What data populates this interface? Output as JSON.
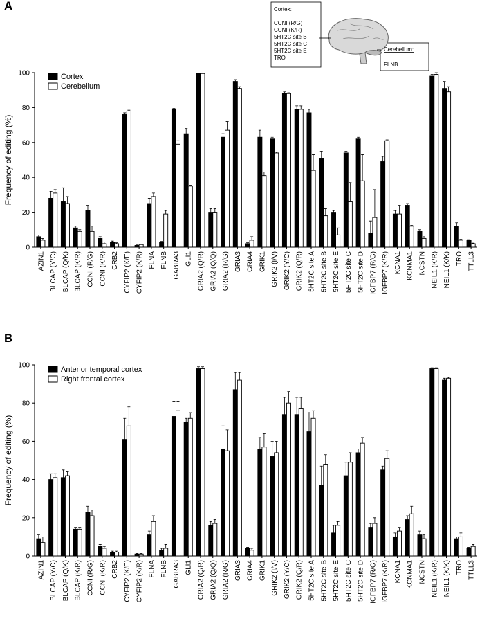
{
  "chart_data": [
    {
      "type": "bar",
      "panel": "A",
      "ylabel": "Frequency of editing (%)",
      "categories": [
        "AZIN1",
        "BLCAP (Y/C)",
        "BLCAP (Q/K)",
        "BLCAP (K/R)",
        "CCNI (R/G)",
        "CCNI (K/R)",
        "CRB2",
        "CYFIP2 (K/E)",
        "CYFIP2 (K/R)",
        "FLNA",
        "FLNB",
        "GABRA3",
        "GLI1",
        "GRIA2 (Q/R)",
        "GRIA2 (Q/Q)",
        "GRIA2 (R/G)",
        "GRIA3",
        "GRIA4",
        "GRIK1",
        "GRIK2 (I/V)",
        "GRIK2 (Y/C)",
        "GRIK2 (Q/R)",
        "5HT2C site A",
        "5HT2C site B",
        "5HT2C site E",
        "5HT2C site C",
        "5HT2C site D",
        "IGFBP7 (R/G)",
        "IGFBP7 (K/R)",
        "KCNA1",
        "KCNMA1",
        "NCSTN",
        "NEIL1 (K/R)",
        "NEIL1 (K/K)",
        "TRO",
        "TTLL3"
      ],
      "series": [
        {
          "name": "Cortex",
          "color": "#000000",
          "values": [
            6,
            28,
            26,
            11,
            21,
            5,
            3,
            76,
            1,
            25,
            3,
            79,
            65,
            99.5,
            20,
            63,
            95,
            2,
            63,
            62,
            88,
            79,
            77,
            51,
            20,
            54,
            62,
            8,
            49,
            19,
            24,
            9,
            98,
            91,
            12,
            4
          ],
          "errors": [
            1,
            4,
            8,
            1,
            3,
            1,
            0.5,
            1,
            0.3,
            3,
            0.3,
            0.5,
            3,
            0.3,
            2,
            2,
            1,
            0.5,
            4,
            1,
            1,
            2,
            2,
            4,
            1,
            1,
            1,
            7,
            3,
            2,
            1,
            1,
            1,
            4,
            2,
            0.3
          ]
        },
        {
          "name": "Cerebellum",
          "color": "#ffffff",
          "values": [
            4,
            31,
            25,
            9,
            9,
            2,
            2,
            78,
            1.5,
            29,
            19,
            59,
            35,
            99.5,
            20,
            67,
            91,
            4,
            41,
            54,
            88,
            79,
            44,
            18,
            7,
            26,
            38,
            17,
            61,
            19,
            12,
            5,
            99,
            89,
            4,
            2
          ],
          "errors": [
            1,
            2,
            4,
            1,
            3,
            1,
            0.5,
            0.5,
            0.3,
            2,
            2,
            2,
            0.5,
            0.3,
            2,
            5,
            1,
            2,
            2,
            0.5,
            0.5,
            2,
            9,
            4,
            4,
            11,
            15,
            16,
            0.5,
            5,
            0.5,
            1,
            1,
            3,
            0.5,
            0.3
          ]
        }
      ],
      "ylim": [
        0,
        100
      ],
      "yticks": [
        0,
        20,
        40,
        60,
        80,
        100
      ],
      "inset": {
        "cortex_title": "Cortex:",
        "cortex_items": [
          "CCNI (R/G)",
          "CCNI (K/R)",
          "5HT2C site B",
          "5HT2C site C",
          "5HT2C site E",
          "TRO"
        ],
        "cerebellum_title": "Cerebellum:",
        "cerebellum_items": [
          "FLNB"
        ]
      }
    },
    {
      "type": "bar",
      "panel": "B",
      "ylabel": "Frequency of editing (%)",
      "categories": [
        "AZIN1",
        "BLCAP (Y/C)",
        "BLCAP (Q/K)",
        "BLCAP (K/R)",
        "CCNI (R/G)",
        "CCNI (K/R)",
        "CRB2",
        "CYFIP2 (K/E)",
        "CYFIP2 (K/R)",
        "FLNA",
        "FLNB",
        "GABRA3",
        "GLI1",
        "GRIA2 (Q/R)",
        "GRIA2 (Q/Q)",
        "GRIA2 (R/G)",
        "GRIA3",
        "GRIA4",
        "GRIK1",
        "GRIK2 (I/V)",
        "GRIK2 (Y/C)",
        "GRIK2 (Q/R)",
        "5HT2C site A",
        "5HT2C site B",
        "5HT2C site E",
        "5HT2C site C",
        "5HT2C site D",
        "IGFBP7 (R/G)",
        "IGFBP7 (K/R)",
        "KCNA1",
        "KCNMA1",
        "NCSTN",
        "NEIL1 (K/R)",
        "NEIL1 (K/K)",
        "TRO",
        "TTLL3"
      ],
      "series": [
        {
          "name": "Anterior temporal cortex",
          "color": "#000000",
          "values": [
            9,
            40,
            41,
            14,
            23,
            5,
            2,
            61,
            1,
            11,
            3,
            73,
            70,
            98,
            16,
            56,
            87,
            4,
            56,
            52,
            74,
            74,
            65,
            37,
            12,
            42,
            54,
            15,
            45,
            10,
            19,
            11,
            98,
            92,
            9,
            4
          ],
          "errors": [
            2,
            3,
            4,
            1,
            3,
            1,
            0.5,
            11,
            0.3,
            2,
            1,
            8,
            2,
            1,
            2,
            12,
            9,
            0.5,
            6,
            8,
            9,
            9,
            10,
            10,
            4,
            7,
            2,
            2,
            2,
            2,
            2,
            2,
            0.5,
            1,
            1,
            0.5
          ]
        },
        {
          "name": "Right frontal cortex",
          "color": "#ffffff",
          "values": [
            7,
            41,
            42,
            14,
            21,
            4,
            2,
            68,
            1,
            18,
            4,
            76,
            72,
            98,
            17,
            55,
            92,
            3,
            57,
            54,
            80,
            77,
            72,
            48,
            16,
            49,
            59,
            17,
            51,
            13,
            22,
            9,
            98,
            93,
            10,
            5
          ],
          "errors": [
            3,
            2,
            2,
            1,
            3,
            1,
            0.5,
            10,
            0.3,
            3,
            2,
            5,
            3,
            1,
            2,
            11,
            4,
            1,
            7,
            6,
            6,
            6,
            4,
            5,
            2,
            5,
            3,
            3,
            4,
            2,
            4,
            2,
            0.5,
            0.5,
            2,
            1
          ]
        }
      ],
      "ylim": [
        0,
        100
      ],
      "yticks": [
        0,
        20,
        40,
        60,
        80,
        100
      ]
    }
  ]
}
